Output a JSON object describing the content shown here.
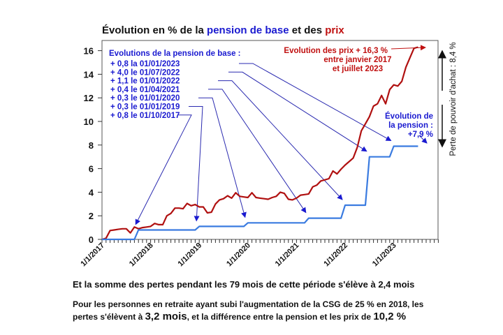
{
  "chart_data": {
    "type": "line",
    "title": {
      "part1": "Évolution en % de la ",
      "part2": "pension de base",
      "part3": " et des ",
      "part4": "prix"
    },
    "ylim": [
      0,
      16.5
    ],
    "yticks": [
      0,
      2,
      4,
      6,
      8,
      10,
      12,
      14,
      16
    ],
    "xtick_labels": [
      "1/1/2017",
      "1/1/2018",
      "1/1/2019",
      "1/1/2020",
      "1/1/2021",
      "1/1/2022",
      "1/1/2023"
    ],
    "grid": false,
    "months": [
      "2017-01",
      "2017-02",
      "2017-03",
      "2017-04",
      "2017-05",
      "2017-06",
      "2017-07",
      "2017-08",
      "2017-09",
      "2017-10",
      "2017-11",
      "2017-12",
      "2018-01",
      "2018-02",
      "2018-03",
      "2018-04",
      "2018-05",
      "2018-06",
      "2018-07",
      "2018-08",
      "2018-09",
      "2018-10",
      "2018-11",
      "2018-12",
      "2019-01",
      "2019-02",
      "2019-03",
      "2019-04",
      "2019-05",
      "2019-06",
      "2019-07",
      "2019-08",
      "2019-09",
      "2019-10",
      "2019-11",
      "2019-12",
      "2020-01",
      "2020-02",
      "2020-03",
      "2020-04",
      "2020-05",
      "2020-06",
      "2020-07",
      "2020-08",
      "2020-09",
      "2020-10",
      "2020-11",
      "2020-12",
      "2021-01",
      "2021-02",
      "2021-03",
      "2021-04",
      "2021-05",
      "2021-06",
      "2021-07",
      "2021-08",
      "2021-09",
      "2021-10",
      "2021-11",
      "2021-12",
      "2022-01",
      "2022-02",
      "2022-03",
      "2022-04",
      "2022-05",
      "2022-06",
      "2022-07",
      "2022-08",
      "2022-09",
      "2022-10",
      "2022-11",
      "2022-12",
      "2023-01",
      "2023-02",
      "2023-03",
      "2023-04",
      "2023-05",
      "2023-06",
      "2023-07"
    ],
    "series": [
      {
        "key": "prix",
        "color": "#b01010",
        "values": [
          0,
          0.1,
          0.75,
          0.8,
          0.85,
          0.9,
          0.9,
          0.55,
          1.05,
          0.9,
          1.0,
          1.05,
          1.1,
          1.35,
          1.25,
          1.25,
          2.0,
          2.2,
          2.65,
          2.65,
          2.6,
          3.05,
          2.85,
          2.95,
          2.75,
          2.75,
          2.25,
          2.3,
          3.0,
          3.35,
          3.45,
          3.7,
          3.5,
          3.95,
          3.65,
          3.6,
          3.55,
          3.95,
          3.55,
          3.5,
          3.45,
          3.4,
          3.55,
          3.65,
          4.0,
          3.9,
          3.4,
          3.35,
          3.5,
          3.75,
          3.8,
          3.85,
          4.45,
          4.6,
          4.95,
          5.05,
          5.15,
          5.8,
          5.55,
          5.95,
          6.3,
          6.6,
          6.9,
          7.8,
          9.2,
          9.8,
          10.4,
          11.3,
          11.5,
          12.2,
          11.5,
          12.7,
          13.1,
          13.0,
          13.4,
          14.6,
          15.4,
          16.2,
          16.3
        ]
      },
      {
        "key": "pension",
        "color": "#3a7be0",
        "values": [
          0,
          0,
          0,
          0,
          0,
          0,
          0,
          0,
          0,
          0.8,
          0.8,
          0.8,
          0.8,
          0.8,
          0.8,
          0.8,
          0.8,
          0.8,
          0.8,
          0.8,
          0.8,
          0.8,
          0.8,
          0.8,
          1.1,
          1.1,
          1.1,
          1.1,
          1.1,
          1.1,
          1.1,
          1.1,
          1.1,
          1.1,
          1.1,
          1.1,
          1.4,
          1.4,
          1.4,
          1.4,
          1.4,
          1.4,
          1.4,
          1.4,
          1.4,
          1.4,
          1.4,
          1.4,
          1.4,
          1.4,
          1.4,
          1.8,
          1.8,
          1.8,
          1.8,
          1.8,
          1.8,
          1.8,
          1.8,
          1.8,
          2.9,
          2.9,
          2.9,
          2.9,
          2.9,
          2.9,
          7.0,
          7.0,
          7.0,
          7.0,
          7.0,
          7.0,
          7.9,
          7.9,
          7.9,
          7.9,
          7.9,
          7.9,
          7.9
        ]
      }
    ],
    "annotations": {
      "pension_header": "Evolutions de la pension de base :",
      "pension_items": [
        {
          "label": "+ 0,8 la 01/01/2023",
          "month": "2023-01"
        },
        {
          "label": "+ 4,0 le 01/07/2022",
          "month": "2022-07"
        },
        {
          "label": "+ 1,1 le 01/01/2022",
          "month": "2022-01"
        },
        {
          "label": "+ 0,4 le 01/04/2021",
          "month": "2021-04"
        },
        {
          "label": "+ 0,3 le 01/01/2020",
          "month": "2020-01"
        },
        {
          "label": "+ 0,3 le 01/01/2019",
          "month": "2019-01"
        },
        {
          "label": "+ 0,8 le 01/10/2017",
          "month": "2017-10"
        }
      ],
      "prix_lines": [
        "Evolution des prix + 16,3 %",
        "entre janvier 2017",
        "et juillet 2023"
      ],
      "pension_lines": [
        "Évolution de",
        "la pension :",
        "+7,9 %"
      ],
      "perte": "Perte de pouvoir d'achat : 8,4 %"
    },
    "colors": {
      "blue_text": "#1a1ad0",
      "red_text": "#c01010",
      "leader": "#2a2ab0"
    }
  },
  "footer": {
    "line1": "Et la somme des pertes pendant les 79 mois de cette période s'élève à 2,4 mois",
    "line2a": "Pour les personnes en retraite ayant subi l'augmentation de la CSG de 25 % en 2018, les pertes s'élèvent à ",
    "line2b": "3,2 mois",
    "line2c": ", et la différence entre la pension et les prix de ",
    "line2d": "10,2 %"
  }
}
